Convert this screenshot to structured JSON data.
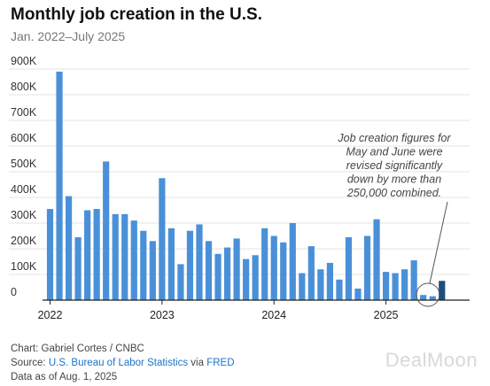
{
  "header": {
    "title": "Monthly job creation in the U.S.",
    "subtitle": "Jan. 2022–July 2025"
  },
  "footer": {
    "chart_credit": "Chart: Gabriel Cortes / CNBC",
    "source_prefix": "Source:",
    "source_link1": "U.S. Bureau of Labor Statistics",
    "source_via": "via",
    "source_link2": "FRED",
    "data_as_of": "Data as of Aug. 1, 2025"
  },
  "watermark": "DealMoon",
  "colors": {
    "bar": "#4a90d9",
    "bar_highlight": "#1c4f7d",
    "grid": "#e3e3e3",
    "axis": "#222222",
    "annotation": "#444444",
    "link": "#1a73c9"
  },
  "chart_data": {
    "type": "bar",
    "title": "Monthly job creation in the U.S.",
    "subtitle": "Jan. 2022–July 2025",
    "ylim": [
      0,
      900
    ],
    "y_ticks": [
      0,
      100,
      200,
      300,
      400,
      500,
      600,
      700,
      800,
      900
    ],
    "y_tick_labels": [
      "0",
      "100K",
      "200K",
      "300K",
      "400K",
      "500K",
      "600K",
      "700K",
      "800K",
      "900K"
    ],
    "x_tick_labels": [
      "2022",
      "2023",
      "2024",
      "2025"
    ],
    "grid": true,
    "categories": [
      "Jan 2022",
      "Feb 2022",
      "Mar 2022",
      "Apr 2022",
      "May 2022",
      "Jun 2022",
      "Jul 2022",
      "Aug 2022",
      "Sep 2022",
      "Oct 2022",
      "Nov 2022",
      "Dec 2022",
      "Jan 2023",
      "Feb 2023",
      "Mar 2023",
      "Apr 2023",
      "May 2023",
      "Jun 2023",
      "Jul 2023",
      "Aug 2023",
      "Sep 2023",
      "Oct 2023",
      "Nov 2023",
      "Dec 2023",
      "Jan 2024",
      "Feb 2024",
      "Mar 2024",
      "Apr 2024",
      "May 2024",
      "Jun 2024",
      "Jul 2024",
      "Aug 2024",
      "Sep 2024",
      "Oct 2024",
      "Nov 2024",
      "Dec 2024",
      "Jan 2025",
      "Feb 2025",
      "Mar 2025",
      "Apr 2025",
      "May 2025",
      "Jun 2025",
      "Jul 2025"
    ],
    "values": [
      355,
      890,
      405,
      245,
      350,
      355,
      540,
      335,
      335,
      310,
      270,
      230,
      475,
      280,
      140,
      270,
      295,
      230,
      180,
      205,
      240,
      160,
      175,
      280,
      250,
      225,
      300,
      105,
      210,
      120,
      145,
      80,
      245,
      45,
      250,
      315,
      110,
      105,
      120,
      155,
      20,
      15,
      75
    ],
    "highlight_index": 42,
    "annotation": {
      "lines": [
        "Job creation figures for",
        "May and June were",
        "revised significantly",
        "down by more than",
        "250,000 combined."
      ],
      "target_categories": [
        "May 2025",
        "Jun 2025"
      ]
    }
  }
}
